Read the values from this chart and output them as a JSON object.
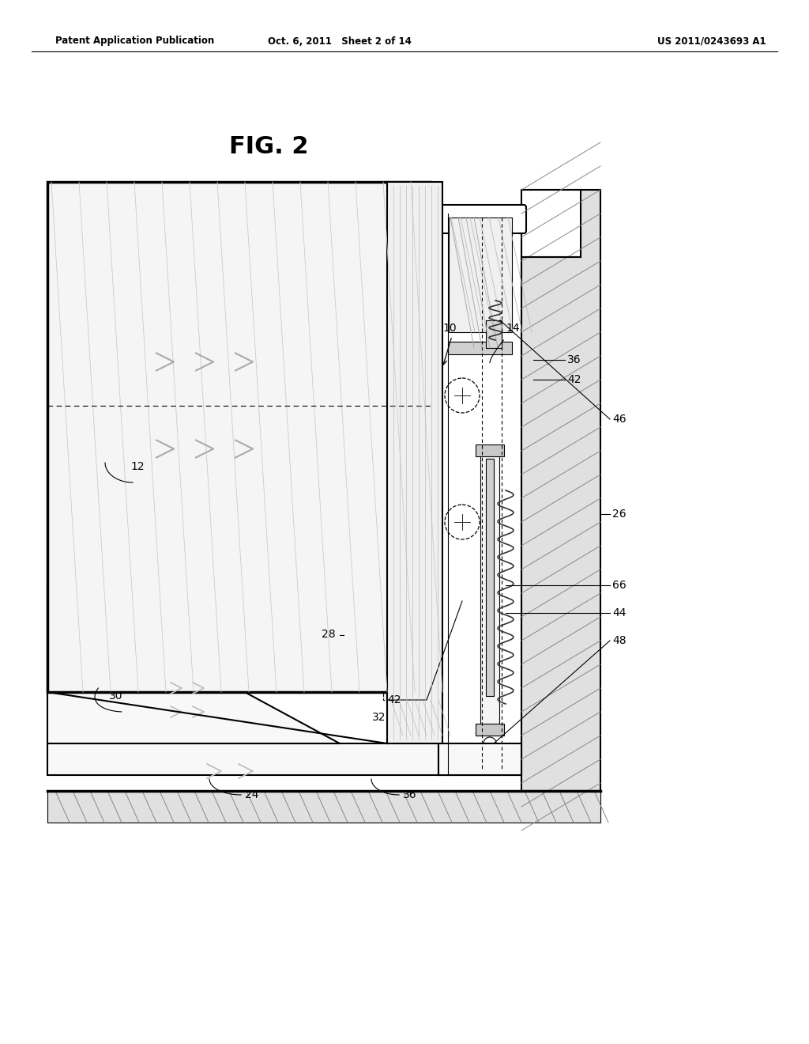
{
  "header_left": "Patent Application Publication",
  "header_center": "Oct. 6, 2011   Sheet 2 of 14",
  "header_right": "US 2011/0243693 A1",
  "title": "FIG. 2",
  "bg_color": "#ffffff",
  "lc": "#000000",
  "wall_hatch_color": "#888888",
  "gray_light": "#e8e8e8",
  "gray_med": "#cccccc",
  "gray_dark": "#aaaaaa"
}
